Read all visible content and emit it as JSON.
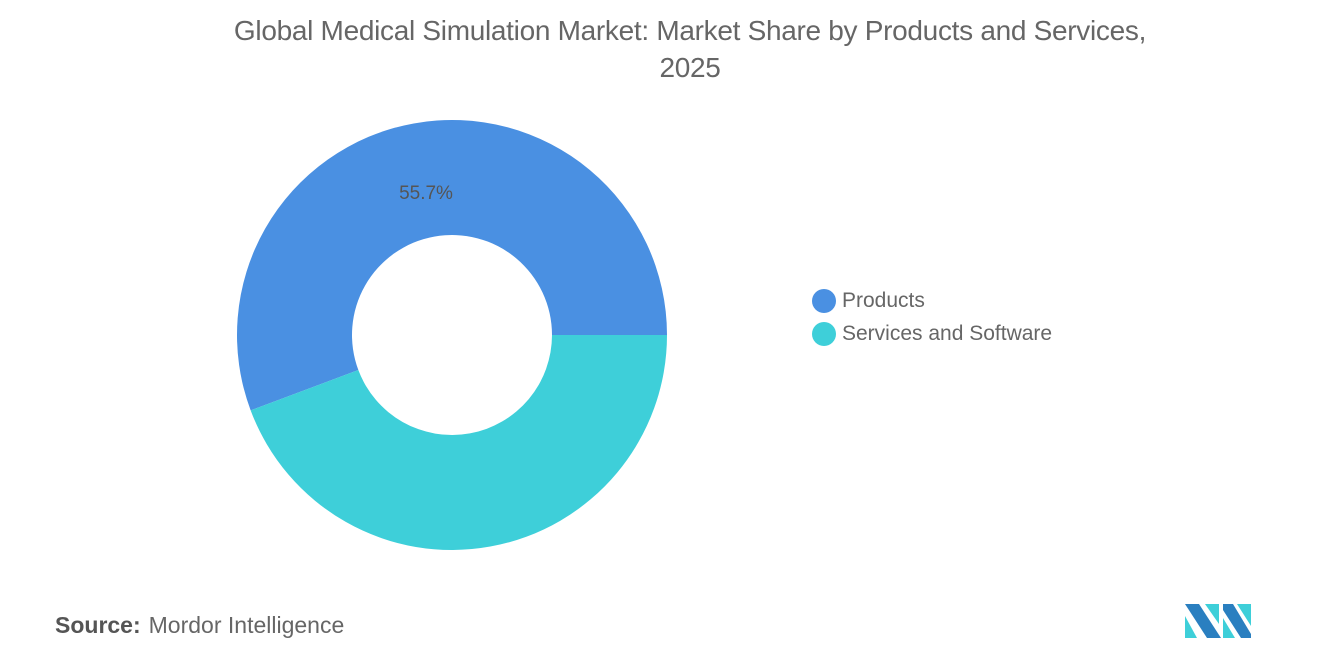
{
  "chart_data": {
    "type": "pie",
    "donut": true,
    "title": "Global Medical Simulation Market: Market Share by Products and Services, 2025",
    "title_lines": [
      "Global Medical Simulation Market: Market Share by Products and Services,",
      "2025"
    ],
    "categories": [
      "Products",
      "Services and Software"
    ],
    "values": [
      55.7,
      44.3
    ],
    "colors": [
      "#4a90e2",
      "#3ecfd9"
    ],
    "data_labels": [
      "55.7%",
      ""
    ],
    "legend_placement": "right"
  },
  "source": {
    "label": "Source:",
    "value": "Mordor Intelligence"
  },
  "logo": {
    "text": "Mordor Intelligence",
    "colors": [
      "#2a7fc0",
      "#3ecfd9"
    ]
  }
}
